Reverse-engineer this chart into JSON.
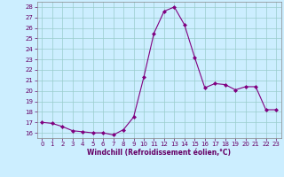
{
  "x": [
    0,
    1,
    2,
    3,
    4,
    5,
    6,
    7,
    8,
    9,
    10,
    11,
    12,
    13,
    14,
    15,
    16,
    17,
    18,
    19,
    20,
    21,
    22,
    23
  ],
  "y": [
    17.0,
    16.9,
    16.6,
    16.2,
    16.1,
    16.0,
    16.0,
    15.8,
    16.3,
    17.5,
    21.3,
    25.5,
    27.6,
    28.0,
    26.3,
    23.2,
    20.3,
    20.7,
    20.6,
    20.1,
    20.4,
    20.4,
    18.2,
    18.2
  ],
  "line_color": "#800080",
  "marker": "D",
  "marker_size": 2,
  "bg_color": "#cceeff",
  "grid_color": "#99cccc",
  "xlabel": "Windchill (Refroidissement éolien,°C)",
  "ylim": [
    15.5,
    28.5
  ],
  "xlim": [
    -0.5,
    23.5
  ],
  "yticks": [
    16,
    17,
    18,
    19,
    20,
    21,
    22,
    23,
    24,
    25,
    26,
    27,
    28
  ],
  "xticks": [
    0,
    1,
    2,
    3,
    4,
    5,
    6,
    7,
    8,
    9,
    10,
    11,
    12,
    13,
    14,
    15,
    16,
    17,
    18,
    19,
    20,
    21,
    22,
    23
  ],
  "tick_fontsize": 5.0,
  "xlabel_fontsize": 5.5
}
